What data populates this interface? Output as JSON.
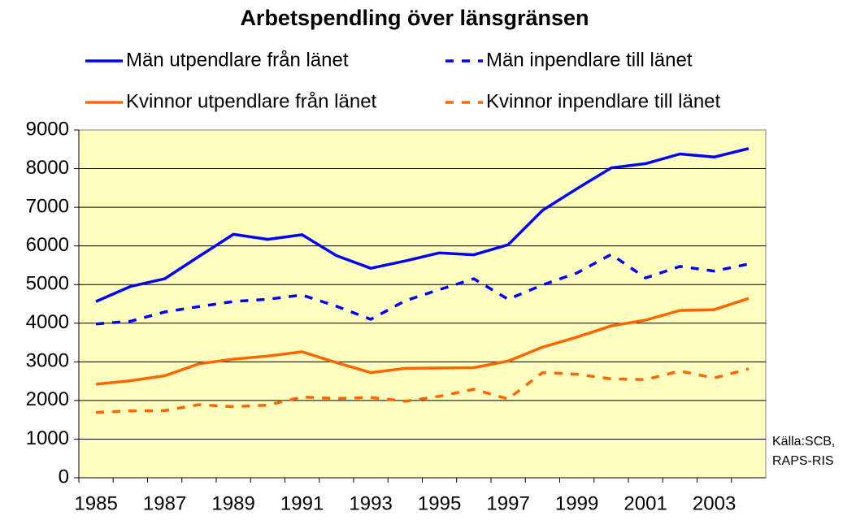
{
  "chart_data": {
    "type": "line",
    "title": "Arbetspendling över länsgränsen",
    "categories": [
      "1985",
      null,
      "1987",
      null,
      "1989",
      null,
      "1991",
      null,
      "1993",
      null,
      "1995",
      null,
      "1997",
      null,
      "1999",
      null,
      "2001",
      null,
      "2003",
      null
    ],
    "series": [
      {
        "name": "Män utpendlare från länet",
        "color": "#0000ff",
        "dash": false,
        "values": [
          4560,
          4950,
          5150,
          5730,
          6300,
          6170,
          6290,
          5750,
          5420,
          5610,
          5820,
          5770,
          6030,
          6920,
          7480,
          8020,
          8130,
          8380,
          8300,
          8520
        ]
      },
      {
        "name": "Män inpendlare till länet",
        "color": "#0000ff",
        "dash": true,
        "values": [
          3980,
          4050,
          4290,
          4430,
          4560,
          4620,
          4730,
          4440,
          4100,
          4580,
          4870,
          5150,
          4620,
          4990,
          5300,
          5780,
          5170,
          5470,
          5350,
          5530
        ]
      },
      {
        "name": "Kvinnor utpendlare från länet",
        "color": "#ff6600",
        "dash": false,
        "values": [
          2420,
          2510,
          2640,
          2950,
          3070,
          3150,
          3260,
          2980,
          2720,
          2830,
          2840,
          2850,
          3020,
          3380,
          3640,
          3930,
          4080,
          4330,
          4350,
          4640
        ]
      },
      {
        "name": "Kvinnor inpendlare till länet",
        "color": "#ff6600",
        "dash": true,
        "values": [
          1690,
          1730,
          1740,
          1890,
          1840,
          1880,
          2090,
          2050,
          2080,
          1980,
          2110,
          2290,
          2040,
          2720,
          2680,
          2560,
          2540,
          2760,
          2580,
          2820
        ]
      }
    ],
    "ylim": [
      0,
      9000
    ],
    "yticks": [
      0,
      1000,
      2000,
      3000,
      4000,
      5000,
      6000,
      7000,
      8000,
      9000
    ],
    "grid": true,
    "legend": "top",
    "source": [
      "Källa:SCB,",
      "RAPS-RIS"
    ]
  }
}
